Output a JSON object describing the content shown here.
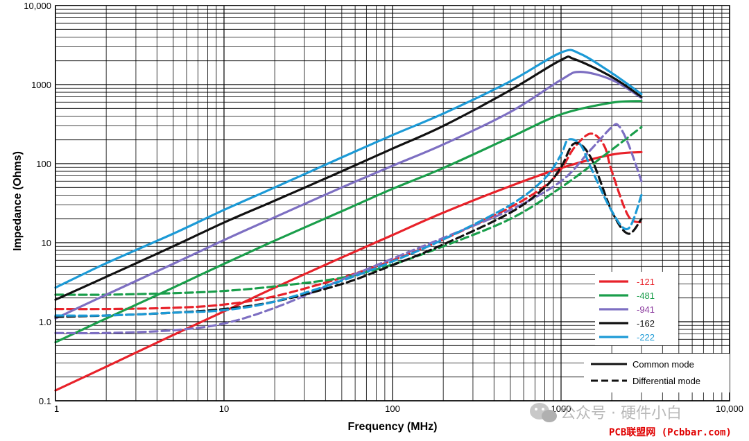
{
  "chart_data": {
    "type": "line",
    "x_scale": "log",
    "y_scale": "log",
    "xlim": [
      1,
      10000
    ],
    "ylim": [
      0.1,
      10000
    ],
    "grid": true,
    "xlabel": "Frequency (MHz)",
    "ylabel": "Impedance (Ohms)",
    "x_ticks": [
      {
        "value": 1,
        "label": "1"
      },
      {
        "value": 10,
        "label": "10"
      },
      {
        "value": 100,
        "label": "100"
      },
      {
        "value": 1000,
        "label": "1000"
      },
      {
        "value": 10000,
        "label": "10,000"
      }
    ],
    "y_ticks": [
      {
        "value": 0.1,
        "label": "0.1"
      },
      {
        "value": 1,
        "label": "1.0"
      },
      {
        "value": 10,
        "label": "10"
      },
      {
        "value": 100,
        "label": "100"
      },
      {
        "value": 1000,
        "label": "1000"
      },
      {
        "value": 10000,
        "label": "10,000"
      }
    ],
    "legend_position": "bottom-right",
    "series": [
      {
        "name": "-121",
        "color": "#e8222a",
        "label_color": "#e8222a",
        "mode": "common",
        "x": [
          1,
          2,
          5,
          10,
          20,
          50,
          100,
          200,
          500,
          1000,
          2000,
          3000
        ],
        "y": [
          0.135,
          0.27,
          0.68,
          1.35,
          2.7,
          6.5,
          12.5,
          24,
          52,
          88,
          130,
          140
        ]
      },
      {
        "name": "-121",
        "color": "#e8222a",
        "mode": "differential",
        "x": [
          1,
          2,
          5,
          10,
          20,
          50,
          100,
          200,
          500,
          800,
          1000,
          1200,
          1500,
          1800,
          2000,
          2500,
          3000
        ],
        "y": [
          1.45,
          1.45,
          1.5,
          1.65,
          2.1,
          3.6,
          6.0,
          11,
          28,
          52,
          85,
          160,
          240,
          170,
          80,
          22,
          18
        ]
      },
      {
        "name": "-481",
        "color": "#1a9e4b",
        "label_color": "#1a9e4b",
        "mode": "common",
        "x": [
          1,
          2,
          5,
          10,
          20,
          50,
          100,
          200,
          500,
          1000,
          2000,
          3000
        ],
        "y": [
          0.55,
          1.1,
          2.7,
          5.4,
          10.6,
          25,
          48,
          88,
          215,
          420,
          590,
          620
        ]
      },
      {
        "name": "-481",
        "color": "#1a9e4b",
        "mode": "differential",
        "x": [
          1,
          2,
          5,
          10,
          20,
          50,
          100,
          200,
          500,
          1000,
          2000,
          3000
        ],
        "y": [
          2.2,
          2.2,
          2.3,
          2.45,
          2.8,
          3.6,
          5.3,
          9.0,
          20,
          50,
          150,
          290
        ]
      },
      {
        "name": "-941",
        "color": "#7d6fc2",
        "label_color": "#8b3a9e",
        "mode": "common",
        "x": [
          1,
          2,
          5,
          10,
          20,
          50,
          100,
          200,
          500,
          1000,
          1300,
          2000,
          3000
        ],
        "y": [
          1.1,
          2.2,
          5.4,
          10.8,
          21,
          50,
          94,
          175,
          450,
          1150,
          1450,
          1150,
          680
        ]
      },
      {
        "name": "-941",
        "color": "#7d6fc2",
        "mode": "differential",
        "x": [
          1,
          2,
          5,
          10,
          20,
          50,
          100,
          200,
          500,
          1000,
          1500,
          2000,
          2200,
          2500,
          3000
        ],
        "y": [
          0.72,
          0.72,
          0.78,
          0.95,
          1.5,
          3.4,
          6.3,
          11.5,
          26,
          60,
          150,
          290,
          300,
          180,
          60
        ]
      },
      {
        "name": "-162",
        "color": "#111111",
        "label_color": "#111111",
        "mode": "common",
        "x": [
          1,
          2,
          5,
          10,
          20,
          50,
          100,
          200,
          500,
          1000,
          1200,
          2000,
          3000
        ],
        "y": [
          1.9,
          3.7,
          9.0,
          18,
          34,
          80,
          155,
          300,
          850,
          2050,
          2100,
          1250,
          700
        ]
      },
      {
        "name": "-162",
        "color": "#111111",
        "mode": "differential",
        "x": [
          1,
          2,
          5,
          10,
          20,
          50,
          100,
          200,
          500,
          800,
          1000,
          1200,
          1500,
          2000,
          2500,
          3000
        ],
        "y": [
          1.15,
          1.2,
          1.3,
          1.45,
          1.8,
          3.0,
          5.2,
          9.5,
          24,
          50,
          90,
          180,
          120,
          25,
          13,
          20
        ]
      },
      {
        "name": "-222",
        "color": "#1c9ad6",
        "label_color": "#1c9ad6",
        "mode": "common",
        "x": [
          1,
          2,
          5,
          10,
          20,
          50,
          100,
          200,
          500,
          1000,
          1300,
          2000,
          3000
        ],
        "y": [
          2.7,
          5.5,
          13,
          26,
          50,
          120,
          230,
          430,
          1100,
          2550,
          2450,
          1400,
          760
        ]
      },
      {
        "name": "-222",
        "color": "#1c9ad6",
        "mode": "differential",
        "x": [
          1,
          2,
          5,
          10,
          20,
          50,
          100,
          200,
          500,
          800,
          1000,
          1100,
          1300,
          1500,
          2000,
          2500,
          3000
        ],
        "y": [
          1.2,
          1.2,
          1.3,
          1.4,
          1.8,
          3.3,
          5.8,
          11,
          30,
          65,
          130,
          200,
          175,
          90,
          25,
          15,
          40
        ]
      }
    ],
    "line_style_legend": [
      {
        "label": "Common mode",
        "style": "solid"
      },
      {
        "label": "Differential mode",
        "style": "dashed"
      }
    ]
  },
  "watermark": {
    "text": "公众号 · 硬件小白",
    "footer": "PCB联盟网 (Pcbbar.com)",
    "icon": "wechat-icon"
  }
}
